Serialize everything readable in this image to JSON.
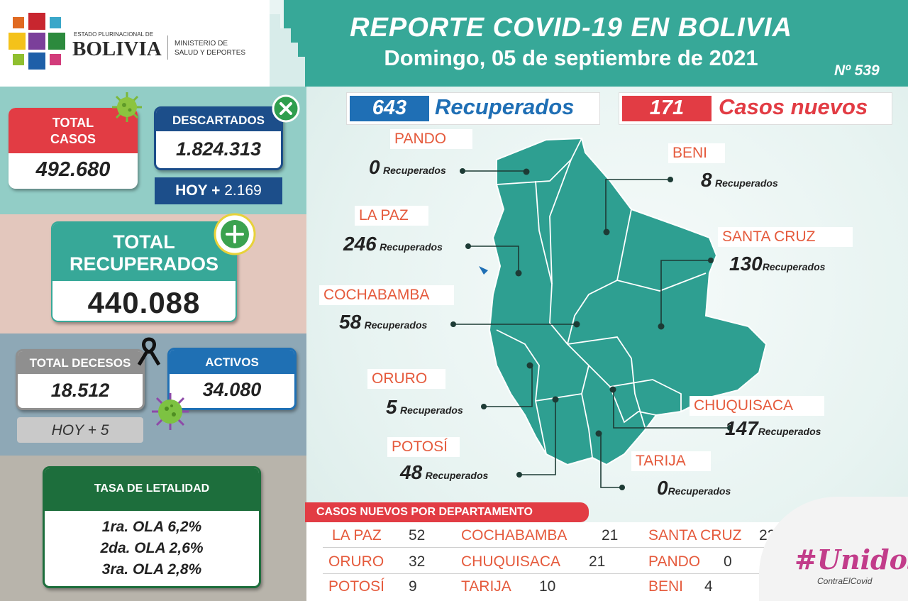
{
  "header": {
    "title": "REPORTE COVID-19 EN BOLIVIA",
    "date": "Domingo, 05 de septiembre de 2021",
    "report_number": "Nº 539",
    "logo": {
      "state_text": "ESTADO PLURINACIONAL DE",
      "country_text": "BOLIVIA",
      "ministry_line1": "MINISTERIO DE",
      "ministry_line2": "SALUD Y DEPORTES"
    }
  },
  "stats": {
    "total_cases": {
      "label_line1": "TOTAL",
      "label_line2": "CASOS",
      "value": "492.680"
    },
    "discarded": {
      "label": "DESCARTADOS",
      "value": "1.824.313",
      "today_prefix": "HOY +",
      "today_value": "2.169"
    },
    "total_recovered": {
      "label_line1": "TOTAL",
      "label_line2": "RECUPERADOS",
      "value": "440.088"
    },
    "total_deaths": {
      "label": "TOTAL DECESOS",
      "value": "18.512",
      "today_prefix": "HOY +",
      "today_value": "5"
    },
    "active": {
      "label": "ACTIVOS",
      "value": "34.080"
    },
    "lethality": {
      "title": "TASA DE LETALIDAD",
      "waves": [
        "1ra. OLA 6,2%",
        "2da. OLA 2,6%",
        "3ra. OLA 2,8%"
      ]
    }
  },
  "summary": {
    "recovered_count": "643",
    "recovered_label": "Recuperados",
    "new_cases_count": "171",
    "new_cases_label": "Casos nuevos"
  },
  "recovered_word": "Recuperados",
  "departments": [
    {
      "name": "PANDO",
      "recovered": "0"
    },
    {
      "name": "BENI",
      "recovered": "8"
    },
    {
      "name": "LA PAZ",
      "recovered": "246"
    },
    {
      "name": "SANTA CRUZ",
      "recovered": "130"
    },
    {
      "name": "COCHABAMBA",
      "recovered": "58"
    },
    {
      "name": "ORURO",
      "recovered": "5"
    },
    {
      "name": "CHUQUISACA",
      "recovered": "147"
    },
    {
      "name": "POTOSÍ",
      "recovered": "48"
    },
    {
      "name": "TARIJA",
      "recovered": "0"
    }
  ],
  "new_cases_table": {
    "title": "CASOS NUEVOS POR DEPARTAMENTO",
    "rows": [
      [
        {
          "name": "LA PAZ",
          "value": "52"
        },
        {
          "name": "COCHABAMBA",
          "value": "21"
        },
        {
          "name": "SANTA CRUZ",
          "value": "22"
        }
      ],
      [
        {
          "name": "ORURO",
          "value": "32"
        },
        {
          "name": "CHUQUISACA",
          "value": "21"
        },
        {
          "name": "PANDO",
          "value": "0"
        }
      ],
      [
        {
          "name": "POTOSÍ",
          "value": "9"
        },
        {
          "name": "TARIJA",
          "value": "10"
        },
        {
          "name": "BENI",
          "value": "4"
        }
      ]
    ]
  },
  "campaign": {
    "hashtag": "#Unidos",
    "subtext": "ContraElCovid"
  },
  "colors": {
    "teal": "#37a898",
    "red": "#e23c44",
    "navy": "#1c4e8a",
    "green": "#1d6e3c",
    "blue": "#1f70b4",
    "orange_text": "#e55a3c",
    "map_fill": "#2e9f91"
  }
}
